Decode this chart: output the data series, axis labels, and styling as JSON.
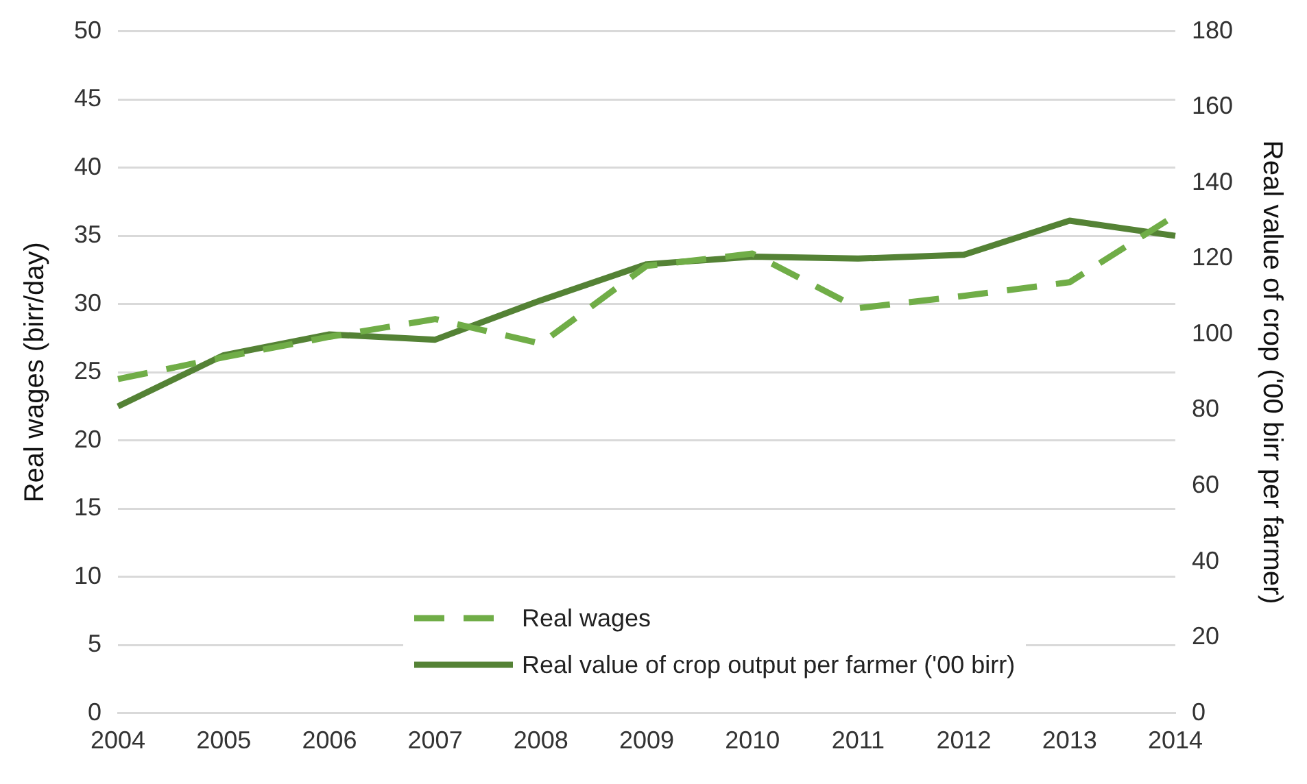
{
  "chart_data": {
    "type": "line",
    "ylabel": "Real wages (birr/day)",
    "y2label": "Real value of crop ('00 birr per farmer)",
    "categories": [
      "2004",
      "2005",
      "2006",
      "2007",
      "2008",
      "2009",
      "2010",
      "2011",
      "2012",
      "2013",
      "2014"
    ],
    "series": [
      {
        "name": "Real wages",
        "color": "#70ad47",
        "line_style": "dashed",
        "values": [
          24.5,
          26.1,
          27.6,
          28.9,
          27.1,
          32.8,
          33.7,
          29.7,
          30.6,
          31.6,
          36.5
        ]
      },
      {
        "name": "Real value of crop output per farmer ('00 birr)",
        "color": "#548235",
        "line_style": "solid",
        "axis": "y2",
        "values": [
          81,
          94.5,
          100,
          98.6,
          109,
          118.5,
          120.5,
          120,
          121,
          130,
          126
        ]
      }
    ],
    "ylim": [
      0,
      50
    ],
    "yticks": [
      0,
      5,
      10,
      15,
      20,
      25,
      30,
      35,
      40,
      45,
      50
    ],
    "y2lim": [
      0,
      180
    ],
    "y2ticks": [
      0,
      20,
      40,
      60,
      80,
      100,
      120,
      140,
      160,
      180
    ],
    "grid": "y",
    "legend": "bottom",
    "marker": "none"
  }
}
